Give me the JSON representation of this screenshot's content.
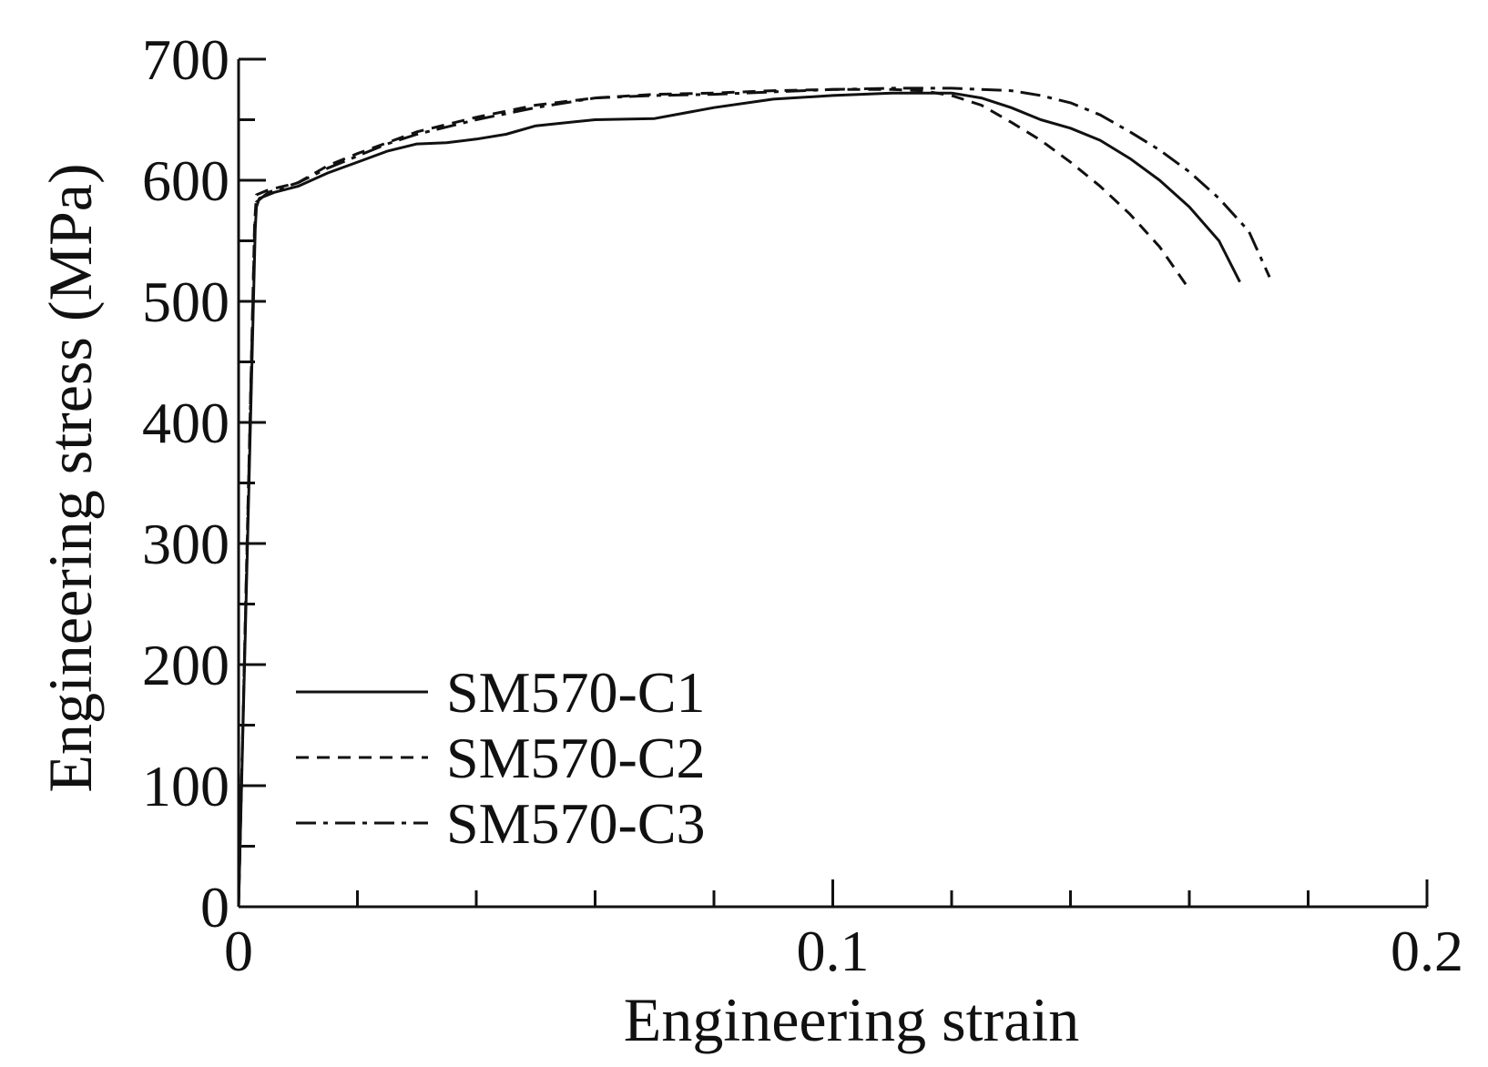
{
  "chart_data": {
    "type": "line",
    "xlabel": "Engineering strain",
    "ylabel": "Engineering stress (MPa)",
    "xlim": [
      0,
      0.2
    ],
    "ylim": [
      0,
      700
    ],
    "x_ticks": [
      0,
      0.1,
      0.2
    ],
    "x_tick_labels": [
      "0",
      "0.1",
      "0.2"
    ],
    "x_minor_step": 0.02,
    "y_ticks": [
      0,
      100,
      200,
      300,
      400,
      500,
      600,
      700
    ],
    "y_tick_labels": [
      "0",
      "100",
      "200",
      "300",
      "400",
      "500",
      "600",
      "700"
    ],
    "y_minor_step": 50,
    "grid": false,
    "legend_position": "bottom-left",
    "series": [
      {
        "name": "SM570-C1",
        "dash": "solid",
        "color": "#111111",
        "points": [
          [
            0,
            0
          ],
          [
            0.0028,
            560
          ],
          [
            0.003,
            578
          ],
          [
            0.0035,
            585
          ],
          [
            0.006,
            590
          ],
          [
            0.01,
            595
          ],
          [
            0.015,
            606
          ],
          [
            0.02,
            615
          ],
          [
            0.025,
            624
          ],
          [
            0.03,
            630
          ],
          [
            0.035,
            631
          ],
          [
            0.04,
            634
          ],
          [
            0.045,
            638
          ],
          [
            0.05,
            645
          ],
          [
            0.06,
            650
          ],
          [
            0.07,
            651
          ],
          [
            0.08,
            660
          ],
          [
            0.09,
            667
          ],
          [
            0.1,
            670
          ],
          [
            0.11,
            672
          ],
          [
            0.12,
            672
          ],
          [
            0.125,
            668
          ],
          [
            0.13,
            660
          ],
          [
            0.135,
            650
          ],
          [
            0.14,
            643
          ],
          [
            0.145,
            633
          ],
          [
            0.15,
            618
          ],
          [
            0.155,
            600
          ],
          [
            0.16,
            578
          ],
          [
            0.165,
            550
          ],
          [
            0.1685,
            516
          ]
        ]
      },
      {
        "name": "SM570-C2",
        "dash": "dashed",
        "color": "#111111",
        "points": [
          [
            0,
            0
          ],
          [
            0.0027,
            565
          ],
          [
            0.003,
            588
          ],
          [
            0.005,
            592
          ],
          [
            0.01,
            598
          ],
          [
            0.015,
            612
          ],
          [
            0.02,
            622
          ],
          [
            0.025,
            631
          ],
          [
            0.03,
            640
          ],
          [
            0.04,
            652
          ],
          [
            0.05,
            662
          ],
          [
            0.06,
            668
          ],
          [
            0.07,
            671
          ],
          [
            0.08,
            672
          ],
          [
            0.09,
            674
          ],
          [
            0.1,
            675
          ],
          [
            0.11,
            675
          ],
          [
            0.115,
            674
          ],
          [
            0.12,
            670
          ],
          [
            0.125,
            662
          ],
          [
            0.13,
            648
          ],
          [
            0.135,
            633
          ],
          [
            0.14,
            615
          ],
          [
            0.145,
            595
          ],
          [
            0.15,
            572
          ],
          [
            0.155,
            545
          ],
          [
            0.1597,
            512
          ]
        ]
      },
      {
        "name": "SM570-C3",
        "dash": "dash-dot",
        "color": "#111111",
        "points": [
          [
            0,
            0
          ],
          [
            0.0027,
            560
          ],
          [
            0.003,
            582
          ],
          [
            0.005,
            590
          ],
          [
            0.01,
            598
          ],
          [
            0.015,
            610
          ],
          [
            0.02,
            620
          ],
          [
            0.025,
            630
          ],
          [
            0.03,
            638
          ],
          [
            0.04,
            650
          ],
          [
            0.05,
            660
          ],
          [
            0.06,
            668
          ],
          [
            0.07,
            670
          ],
          [
            0.08,
            671
          ],
          [
            0.09,
            673
          ],
          [
            0.1,
            675
          ],
          [
            0.11,
            676
          ],
          [
            0.12,
            676
          ],
          [
            0.13,
            674
          ],
          [
            0.135,
            670
          ],
          [
            0.14,
            664
          ],
          [
            0.145,
            654
          ],
          [
            0.15,
            640
          ],
          [
            0.155,
            625
          ],
          [
            0.16,
            607
          ],
          [
            0.165,
            585
          ],
          [
            0.17,
            558
          ],
          [
            0.1735,
            520
          ]
        ]
      }
    ]
  }
}
